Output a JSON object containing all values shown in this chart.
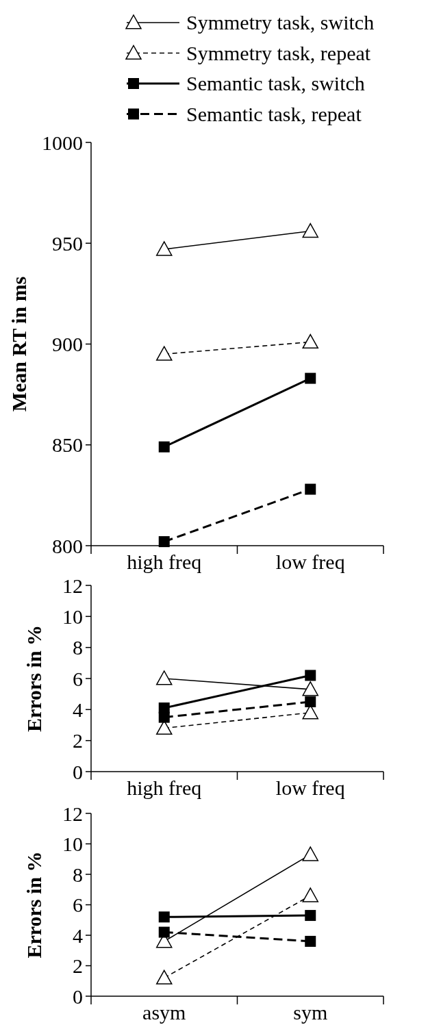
{
  "chart_data": [
    {
      "type": "line",
      "ylabel": "Mean RT in ms",
      "categories": [
        "high freq",
        "low freq"
      ],
      "ylim": [
        800,
        1000
      ],
      "yticks": [
        800,
        850,
        900,
        950,
        1000
      ],
      "legend": "top",
      "series": [
        {
          "name": "Symmetry task, switch",
          "color": "#000000",
          "marker": "triangle",
          "line_style": "solid",
          "values": [
            947,
            956
          ]
        },
        {
          "name": "Symmetry task, repeat",
          "color": "#000000",
          "marker": "triangle",
          "line_style": "dashed",
          "values": [
            895,
            901
          ]
        },
        {
          "name": "Semantic task, switch",
          "color": "#000000",
          "marker": "square",
          "line_style": "solid",
          "values": [
            849,
            883
          ]
        },
        {
          "name": "Semantic task, repeat",
          "color": "#000000",
          "marker": "square",
          "line_style": "dashed",
          "values": [
            802,
            828
          ]
        }
      ]
    },
    {
      "type": "line",
      "ylabel": "Errors in %",
      "categories": [
        "high freq",
        "low freq"
      ],
      "ylim": [
        0,
        12
      ],
      "yticks": [
        0,
        2,
        4,
        6,
        8,
        10,
        12
      ],
      "series": [
        {
          "color": "#000000",
          "marker": "triangle",
          "line_style": "solid",
          "values": [
            6.0,
            5.3
          ]
        },
        {
          "color": "#000000",
          "marker": "triangle",
          "line_style": "dashed",
          "values": [
            2.8,
            3.8
          ]
        },
        {
          "color": "#000000",
          "marker": "square",
          "line_style": "solid",
          "values": [
            4.1,
            6.2
          ]
        },
        {
          "color": "#000000",
          "marker": "square",
          "line_style": "dashed",
          "values": [
            3.5,
            4.5
          ]
        }
      ]
    },
    {
      "type": "line",
      "ylabel": "Errors in %",
      "categories": [
        "asym",
        "sym"
      ],
      "ylim": [
        0,
        12
      ],
      "yticks": [
        0,
        2,
        4,
        6,
        8,
        10,
        12
      ],
      "series": [
        {
          "color": "#000000",
          "marker": "triangle",
          "line_style": "solid",
          "values": [
            3.6,
            9.3
          ]
        },
        {
          "color": "#000000",
          "marker": "triangle",
          "line_style": "dashed",
          "values": [
            1.2,
            6.6
          ]
        },
        {
          "color": "#000000",
          "marker": "square",
          "line_style": "solid",
          "values": [
            5.2,
            5.3
          ]
        },
        {
          "color": "#000000",
          "marker": "square",
          "line_style": "dashed",
          "values": [
            4.2,
            3.6
          ]
        }
      ]
    }
  ]
}
